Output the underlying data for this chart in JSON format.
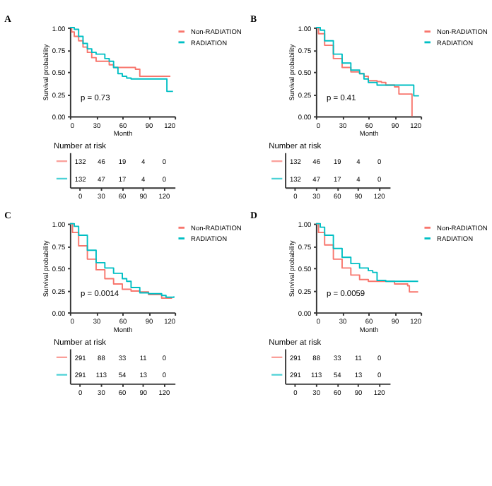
{
  "chart_data": [
    {
      "type": "step",
      "title": "A",
      "xlabel": "Month",
      "ylabel": "Survival probability",
      "xlim": [
        0,
        120
      ],
      "ylim": [
        0,
        1
      ],
      "xticks": [
        0,
        30,
        60,
        90,
        120
      ],
      "yticks": [
        {
          "value": 0,
          "label": "0.00"
        },
        {
          "value": 0.25,
          "label": "0.25"
        },
        {
          "value": 0.5,
          "label": "0.50"
        },
        {
          "value": 0.75,
          "label": "0.75"
        },
        {
          "value": 1,
          "label": "1.00"
        }
      ],
      "legend": "right",
      "grid": false,
      "annotations": [
        "p = 0.73"
      ],
      "series": [
        {
          "name": "Non-RADIATION",
          "color": "#f8766d",
          "x": [
            0,
            2,
            5,
            10,
            15,
            20,
            25,
            30,
            40,
            45,
            50,
            60,
            75,
            80,
            115
          ],
          "values": [
            1,
            0.95,
            0.9,
            0.85,
            0.78,
            0.72,
            0.66,
            0.62,
            0.62,
            0.58,
            0.55,
            0.55,
            0.53,
            0.45,
            0.45
          ]
        },
        {
          "name": "RADIATION",
          "color": "#00bfc4",
          "x": [
            0,
            5,
            10,
            15,
            20,
            25,
            30,
            40,
            45,
            50,
            55,
            60,
            65,
            70,
            110,
            111,
            118
          ],
          "values": [
            1,
            0.98,
            0.9,
            0.82,
            0.76,
            0.72,
            0.7,
            0.65,
            0.62,
            0.55,
            0.48,
            0.45,
            0.43,
            0.42,
            0.42,
            0.28,
            0.28
          ]
        }
      ]
    },
    {
      "type": "step",
      "title": "B",
      "xlabel": "Month",
      "ylabel": "Survival probability",
      "xlim": [
        0,
        120
      ],
      "ylim": [
        0,
        1
      ],
      "xticks": [
        0,
        30,
        60,
        90,
        120
      ],
      "yticks": [
        {
          "value": 0,
          "label": "0.00"
        },
        {
          "value": 0.25,
          "label": "0.25"
        },
        {
          "value": 0.5,
          "label": "0.50"
        },
        {
          "value": 0.75,
          "label": "0.75"
        },
        {
          "value": 1,
          "label": "1.00"
        }
      ],
      "legend": "right",
      "grid": false,
      "annotations": [
        "p = 0.41"
      ],
      "series": [
        {
          "name": "Non-RADIATION",
          "color": "#f8766d",
          "x": [
            0,
            3,
            10,
            20,
            30,
            40,
            50,
            55,
            60,
            70,
            75,
            80,
            90,
            95,
            107,
            110
          ],
          "values": [
            1,
            0.93,
            0.8,
            0.65,
            0.55,
            0.5,
            0.48,
            0.45,
            0.4,
            0.39,
            0.38,
            0.35,
            0.33,
            0.25,
            0.25,
            0
          ]
        },
        {
          "name": "RADIATION",
          "color": "#00bfc4",
          "x": [
            0,
            5,
            10,
            20,
            30,
            40,
            50,
            55,
            60,
            70,
            110,
            112,
            118
          ],
          "values": [
            1,
            0.97,
            0.85,
            0.7,
            0.6,
            0.52,
            0.48,
            0.42,
            0.38,
            0.35,
            0.35,
            0.23,
            0.23
          ]
        }
      ]
    },
    {
      "type": "heatmap",
      "title": "Number at risk",
      "categories": [
        "0",
        "30",
        "60",
        "90",
        "120"
      ],
      "y_categories": [
        null,
        null
      ],
      "cells": [
        [
          132,
          46,
          19,
          4,
          0
        ],
        [
          132,
          47,
          17,
          4,
          0
        ]
      ],
      "data_labels": true
    },
    {
      "type": "heatmap",
      "title": "Number at risk",
      "categories": [
        "0",
        "30",
        "60",
        "90",
        "120"
      ],
      "y_categories": [
        null,
        null
      ],
      "cells": [
        [
          132,
          46,
          19,
          4,
          0
        ],
        [
          132,
          47,
          17,
          4,
          0
        ]
      ],
      "data_labels": true
    },
    {
      "type": "step",
      "title": "C",
      "xlabel": "Month",
      "ylabel": "Survival probability",
      "xlim": [
        0,
        120
      ],
      "ylim": [
        0,
        1
      ],
      "xticks": [
        0,
        30,
        60,
        90,
        120
      ],
      "yticks": [
        {
          "value": 0,
          "label": "0.00"
        },
        {
          "value": 0.25,
          "label": "0.25"
        },
        {
          "value": 0.5,
          "label": "0.50"
        },
        {
          "value": 0.75,
          "label": "0.75"
        },
        {
          "value": 1,
          "label": "1.00"
        }
      ],
      "legend": "right",
      "grid": false,
      "annotations": [
        "p = 0.0014"
      ],
      "series": [
        {
          "name": "Non-RADIATION",
          "color": "#f8766d",
          "x": [
            0,
            3,
            10,
            20,
            30,
            40,
            50,
            60,
            70,
            80,
            90,
            105,
            117
          ],
          "values": [
            1,
            0.9,
            0.75,
            0.6,
            0.48,
            0.38,
            0.32,
            0.26,
            0.24,
            0.23,
            0.2,
            0.16,
            0.16
          ]
        },
        {
          "name": "RADIATION",
          "color": "#00bfc4",
          "x": [
            0,
            5,
            10,
            20,
            30,
            40,
            50,
            60,
            65,
            70,
            80,
            90,
            105,
            110,
            119
          ],
          "values": [
            1,
            0.97,
            0.87,
            0.7,
            0.56,
            0.5,
            0.44,
            0.38,
            0.35,
            0.28,
            0.22,
            0.21,
            0.19,
            0.17,
            0.18
          ]
        }
      ]
    },
    {
      "type": "step",
      "title": "D",
      "xlabel": "Month",
      "ylabel": "Survival probability",
      "xlim": [
        0,
        120
      ],
      "ylim": [
        0,
        1
      ],
      "xticks": [
        0,
        30,
        60,
        90,
        120
      ],
      "yticks": [
        {
          "value": 0,
          "label": "0.00"
        },
        {
          "value": 0.25,
          "label": "0.25"
        },
        {
          "value": 0.5,
          "label": "0.50"
        },
        {
          "value": 0.75,
          "label": "0.75"
        },
        {
          "value": 1,
          "label": "1.00"
        }
      ],
      "legend": "right",
      "grid": false,
      "annotations": [
        "p = 0.0059"
      ],
      "series": [
        {
          "name": "Non-RADIATION",
          "color": "#f8766d",
          "x": [
            0,
            3,
            10,
            20,
            30,
            40,
            50,
            60,
            80,
            90,
            105,
            107,
            117
          ],
          "values": [
            1,
            0.9,
            0.76,
            0.6,
            0.5,
            0.42,
            0.37,
            0.35,
            0.35,
            0.32,
            0.3,
            0.23,
            0.23
          ]
        },
        {
          "name": "RADIATION",
          "color": "#00bfc4",
          "x": [
            0,
            5,
            10,
            20,
            30,
            40,
            50,
            60,
            65,
            70,
            80,
            117
          ],
          "values": [
            1,
            0.96,
            0.87,
            0.72,
            0.62,
            0.55,
            0.5,
            0.47,
            0.45,
            0.36,
            0.35,
            0.35
          ]
        }
      ]
    },
    {
      "type": "heatmap",
      "title": "Number at risk",
      "categories": [
        "0",
        "30",
        "60",
        "90",
        "120"
      ],
      "y_categories": [
        null,
        null
      ],
      "cells": [
        [
          291,
          88,
          33,
          11,
          0
        ],
        [
          291,
          113,
          54,
          13,
          0
        ]
      ],
      "data_labels": true
    },
    {
      "type": "heatmap",
      "title": "Number at risk",
      "categories": [
        "0",
        "30",
        "60",
        "90",
        "120"
      ],
      "y_categories": [
        null,
        null
      ],
      "cells": [
        [
          291,
          88,
          33,
          11,
          0
        ],
        [
          291,
          113,
          54,
          13,
          0
        ]
      ],
      "data_labels": true
    }
  ]
}
